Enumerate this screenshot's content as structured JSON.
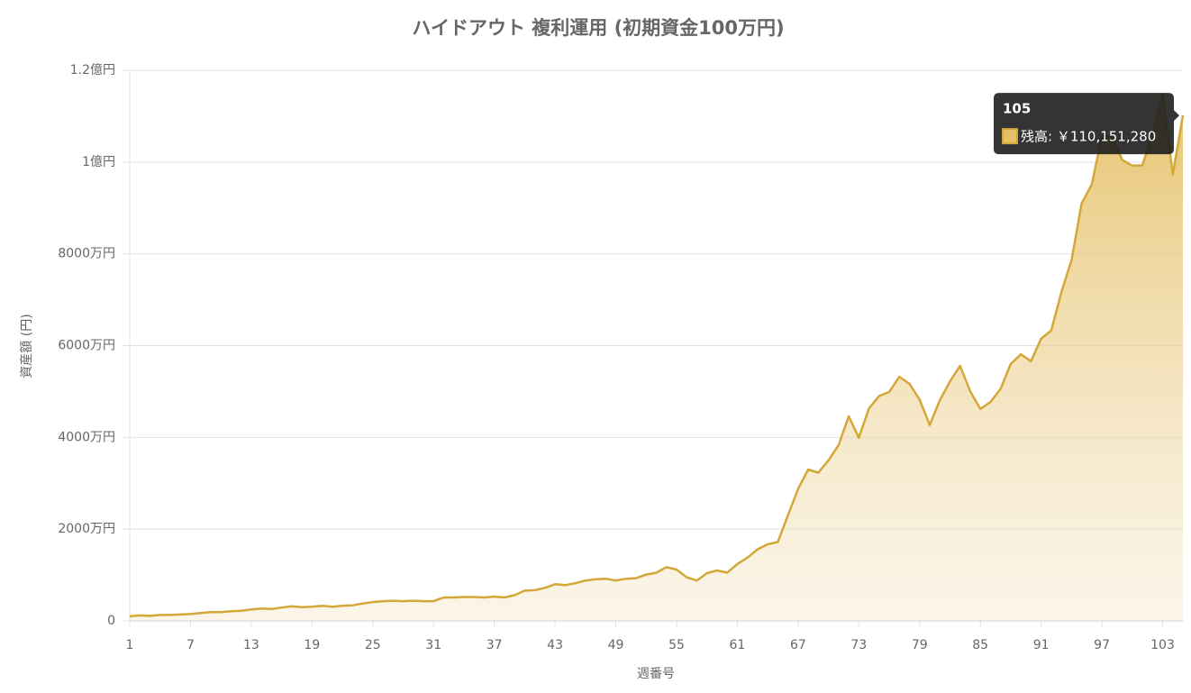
{
  "chart_data": {
    "type": "line",
    "title": "ハイドアウト 複利運用 (初期資金100万円)",
    "x_label": "週番号",
    "y_label": "資産額 (円)",
    "x": [
      1,
      2,
      3,
      4,
      5,
      6,
      7,
      8,
      9,
      10,
      11,
      12,
      13,
      14,
      15,
      16,
      17,
      18,
      19,
      20,
      21,
      22,
      23,
      24,
      25,
      26,
      27,
      28,
      29,
      30,
      31,
      32,
      33,
      34,
      35,
      36,
      37,
      38,
      39,
      40,
      41,
      42,
      43,
      44,
      45,
      46,
      47,
      48,
      49,
      50,
      51,
      52,
      53,
      54,
      55,
      56,
      57,
      58,
      59,
      60,
      61,
      62,
      63,
      64,
      65,
      66,
      67,
      68,
      69,
      70,
      71,
      72,
      73,
      74,
      75,
      76,
      77,
      78,
      79,
      80,
      81,
      82,
      83,
      84,
      85,
      86,
      87,
      88,
      89,
      90,
      91,
      92,
      93,
      94,
      95,
      96,
      97,
      98,
      99,
      100,
      101,
      102,
      103,
      104,
      105
    ],
    "series": [
      {
        "name": "残高",
        "color": "#d4a838",
        "values": [
          1000000,
          1200000,
          1100000,
          1300000,
          1300000,
          1400000,
          1500000,
          1700000,
          1900000,
          1900000,
          2100000,
          2200000,
          2500000,
          2700000,
          2600000,
          2900000,
          3200000,
          3000000,
          3100000,
          3300000,
          3100000,
          3300000,
          3400000,
          3800000,
          4100000,
          4300000,
          4400000,
          4300000,
          4400000,
          4300000,
          4300000,
          5100000,
          5100000,
          5200000,
          5200000,
          5100000,
          5300000,
          5100000,
          5600000,
          6600000,
          6700000,
          7200000,
          8000000,
          7800000,
          8200000,
          8800000,
          9100000,
          9200000,
          8800000,
          9200000,
          9300000,
          10100000,
          10500000,
          11700000,
          11200000,
          9500000,
          8800000,
          10400000,
          11000000,
          10500000,
          12400000,
          13800000,
          15600000,
          16700000,
          17200000,
          23000000,
          28800000,
          33000000,
          32300000,
          35000000,
          38300000,
          44600000,
          39900000,
          46300000,
          49000000,
          49900000,
          53200000,
          51700000,
          48200000,
          42700000,
          48100000,
          52200000,
          55600000,
          50000000,
          46200000,
          47700000,
          50600000,
          56000000,
          58100000,
          56600000,
          61500000,
          63300000,
          71600000,
          78600000,
          91000000,
          95100000,
          105500000,
          105600000,
          100500000,
          99200000,
          99300000,
          106000000,
          114800000,
          97300000,
          110151280
        ]
      }
    ],
    "xlim": [
      1,
      105
    ],
    "xticks": [
      1,
      7,
      13,
      19,
      25,
      31,
      37,
      43,
      49,
      55,
      61,
      67,
      73,
      79,
      85,
      91,
      97,
      103
    ],
    "ylim": [
      0,
      120000000
    ],
    "yticks": [
      0,
      {
        "value": 20000000,
        "label": "2000万円"
      },
      {
        "value": 40000000,
        "label": "4000万円"
      },
      {
        "value": 60000000,
        "label": "6000万円"
      },
      {
        "value": 80000000,
        "label": "8000万円"
      },
      {
        "value": 100000000,
        "label": "1億円"
      },
      {
        "value": 120000000,
        "label": "1.2億円"
      }
    ],
    "grid": true,
    "tooltip": {
      "title": "105",
      "text": "残高: ￥110,151,280"
    }
  }
}
